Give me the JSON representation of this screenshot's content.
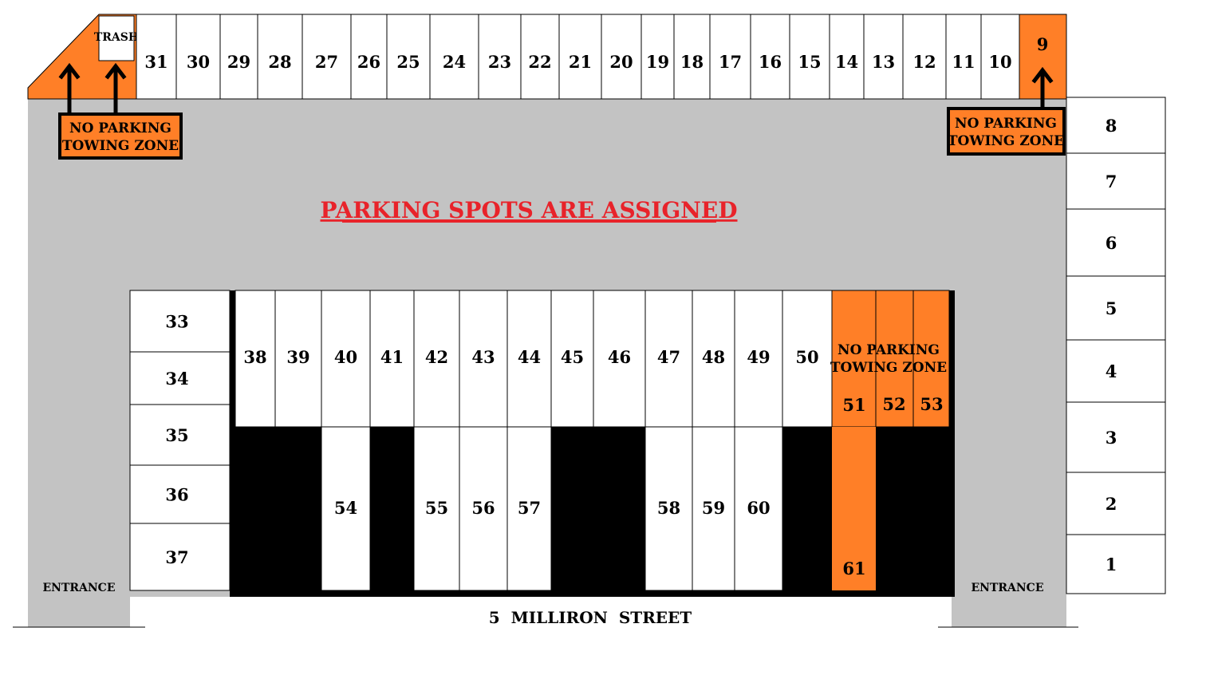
{
  "colors": {
    "lot": "#c3c3c3",
    "spot": "#ffffff",
    "no_parking": "#ff7f27",
    "blocked": "#000000",
    "banner": "#e8232a"
  },
  "banner_text": "PARKING SPOTS ARE ASSIGNED",
  "street_name": "5  MILLIRON  STREET",
  "entrances": {
    "left": "ENTRANCE",
    "right": "ENTRANCE"
  },
  "trash_label": "TRASH",
  "signs": {
    "top_left": [
      "NO PARKING",
      "TOWING ZONE"
    ],
    "top_right": [
      "NO PARKING",
      "TOWING ZONE"
    ],
    "center_right": [
      "NO PARKING",
      "TOWING ZONE"
    ]
  },
  "spots": {
    "top_row": [
      "31",
      "30",
      "29",
      "28",
      "27",
      "26",
      "25",
      "24",
      "23",
      "22",
      "21",
      "20",
      "19",
      "18",
      "17",
      "16",
      "15",
      "14",
      "13",
      "12",
      "11",
      "10"
    ],
    "top_no_parking": "9",
    "right_column": [
      "8",
      "7",
      "6",
      "5",
      "4",
      "3",
      "2",
      "1"
    ],
    "left_island": [
      "33",
      "34",
      "35",
      "36",
      "37"
    ],
    "island_top_row": [
      "38",
      "39",
      "40",
      "41",
      "42",
      "43",
      "44",
      "45",
      "46",
      "47",
      "48",
      "49",
      "50"
    ],
    "island_no_parking_row": [
      "51",
      "52",
      "53"
    ],
    "island_bottom_row": [
      "54",
      "55",
      "56",
      "57",
      "58",
      "59",
      "60"
    ],
    "island_no_parking_bottom": "61"
  }
}
